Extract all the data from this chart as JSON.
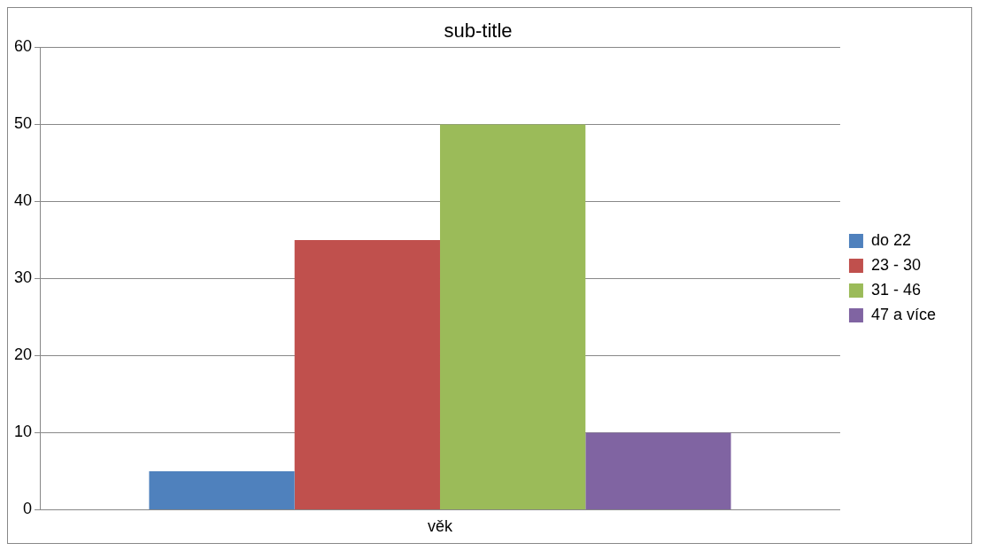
{
  "chart_data": {
    "type": "bar",
    "title": "sub-title",
    "categories": [
      "věk"
    ],
    "series": [
      {
        "name": "do 22",
        "color": "#4f81bd",
        "values": [
          5
        ]
      },
      {
        "name": "23 - 30",
        "color": "#c0504d",
        "values": [
          35
        ]
      },
      {
        "name": "31 - 46",
        "color": "#9bbb59",
        "values": [
          50
        ]
      },
      {
        "name": "47 a více",
        "color": "#8064a2",
        "values": [
          10
        ]
      }
    ],
    "ylim": [
      0,
      60
    ],
    "yticks": [
      0,
      10,
      20,
      30,
      40,
      50,
      60
    ],
    "grid": "y",
    "legend": "right"
  }
}
